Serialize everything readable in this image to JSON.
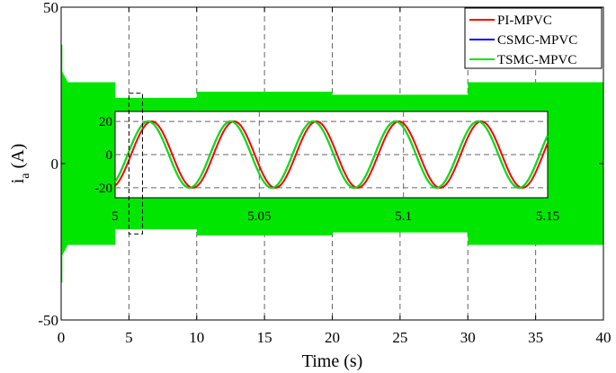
{
  "chart_data": [
    {
      "type": "area",
      "xlabel": "Time (s)",
      "ylabel_main": "i",
      "ylabel_sub": "a",
      "ylabel_unit": " (A)",
      "xlim": [
        0,
        40
      ],
      "ylim": [
        -50,
        50
      ],
      "x_ticks": [
        0,
        5,
        10,
        15,
        20,
        25,
        30,
        35,
        40
      ],
      "y_ticks": [
        -50,
        0,
        50
      ],
      "grid": true,
      "legend_position": "top-right",
      "series": [
        {
          "name": "PI-MPVC",
          "color": "#ff0000"
        },
        {
          "name": "CSMC-MPVC",
          "color": "#0000ff"
        },
        {
          "name": "TSMC-MPVC",
          "color": "#00e600"
        }
      ],
      "envelope": {
        "x": [
          0,
          0.5,
          4,
          4,
          10,
          10,
          20,
          20,
          30,
          30,
          40
        ],
        "upper": [
          30,
          26,
          26,
          21,
          21,
          23,
          23,
          22,
          22,
          26,
          26
        ],
        "lower": [
          -30,
          -26,
          -26,
          -21,
          -21,
          -23,
          -23,
          -22,
          -22,
          -26,
          -26
        ]
      },
      "zoom_window": {
        "x": [
          5,
          6
        ],
        "y": [
          -22.5,
          22.5
        ]
      }
    },
    {
      "type": "line",
      "xlim": [
        5,
        5.15
      ],
      "ylim": [
        -26,
        26
      ],
      "x_ticks": [
        5,
        5.05,
        5.1,
        5.15
      ],
      "x_tick_labels": [
        "5",
        "5.05",
        "5.1",
        "5.15"
      ],
      "y_ticks": [
        -20,
        0,
        20
      ],
      "y_tick_labels": [
        "-20",
        "0",
        "20"
      ],
      "grid": true,
      "sine": {
        "amplitude": 20,
        "frequency_hz": 35
      },
      "series": [
        {
          "name": "PI-MPVC",
          "color": "#ff0000",
          "phase_deg": 0
        },
        {
          "name": "CSMC-MPVC",
          "color": "#0000ff",
          "phase_deg": 15
        },
        {
          "name": "TSMC-MPVC",
          "color": "#00e600",
          "phase_deg": 15
        }
      ]
    }
  ]
}
